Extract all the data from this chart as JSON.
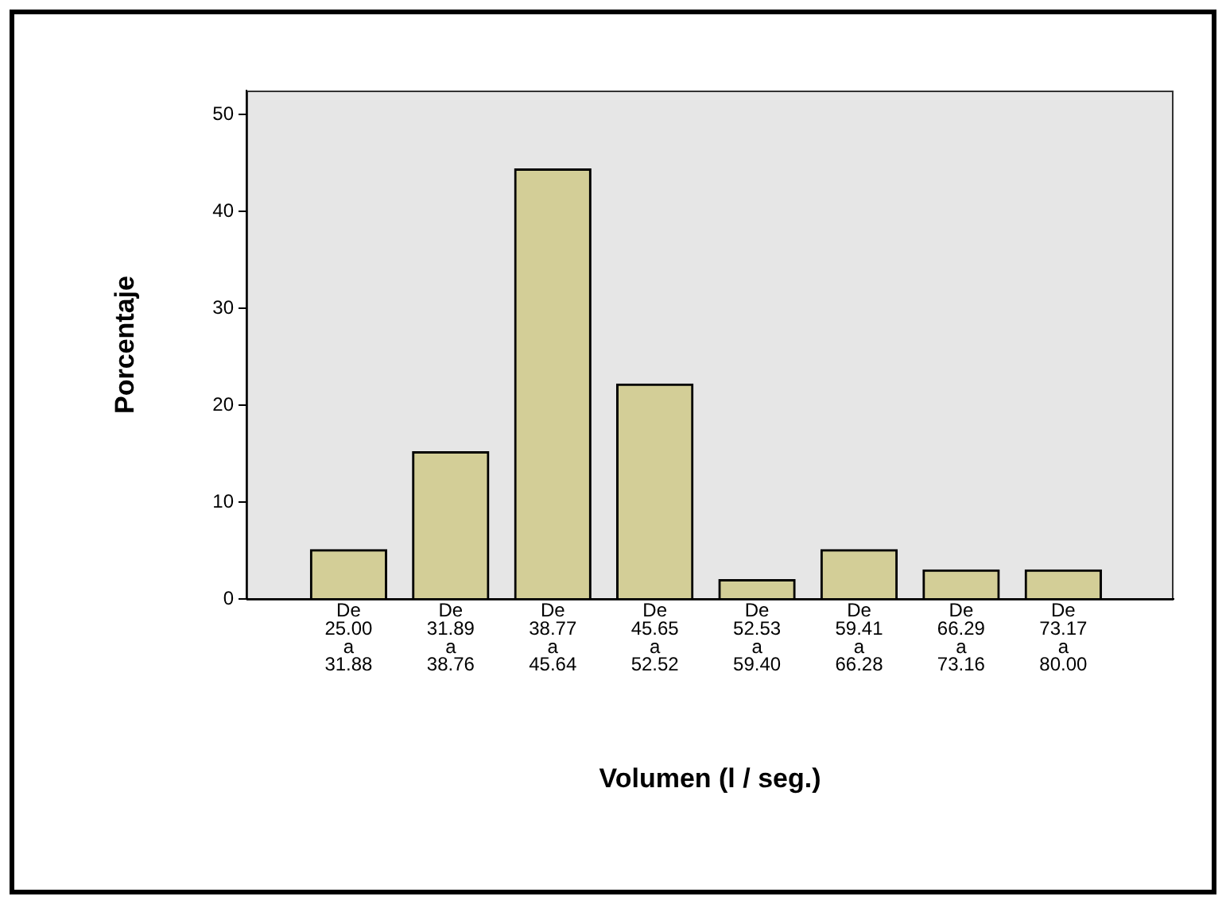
{
  "chart_data": {
    "type": "bar",
    "xlabel": "Volumen (l / seg.)",
    "ylabel": "Porcentaje",
    "categories": [
      "De 25.00 a 31.88",
      "De 31.89 a 38.76",
      "De 38.77 a 45.64",
      "De 45.65 a 52.52",
      "De 52.53 a 59.40",
      "De 59.41 a 66.28",
      "De 66.29 a 73.16",
      "De 73.17 a 80.00"
    ],
    "values": [
      5.1,
      15.2,
      44.4,
      22.2,
      2.0,
      5.1,
      3.0,
      3.0
    ],
    "color": "#d3ce97",
    "ylim": [
      0,
      52.5
    ],
    "yticks": [
      0,
      10,
      20,
      30,
      40,
      50
    ],
    "grid": false,
    "legend": false
  }
}
